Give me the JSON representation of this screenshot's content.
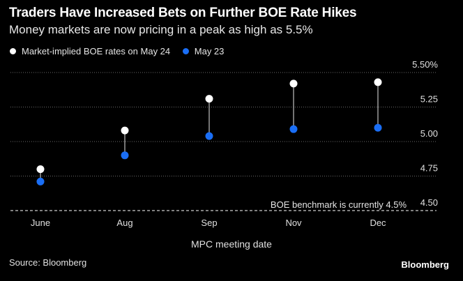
{
  "header": {
    "title": "Traders Have Increased Bets on Further BOE Rate Hikes",
    "subtitle": "Money markets are now pricing in a peak as high as 5.5%"
  },
  "legend": {
    "items": [
      {
        "label": "Market-implied BOE rates on May 24",
        "color": "#ffffff"
      },
      {
        "label": "May 23",
        "color": "#1a6ef5"
      }
    ]
  },
  "footer": {
    "source": "Source: Bloomberg",
    "brand": "Bloomberg"
  },
  "chart_data": {
    "type": "scatter",
    "categories": [
      "June",
      "Aug",
      "Sep",
      "Nov",
      "Dec"
    ],
    "series": [
      {
        "name": "Market-implied BOE rates on May 24",
        "color": "#ffffff",
        "values": [
          4.8,
          5.08,
          5.31,
          5.42,
          5.43
        ]
      },
      {
        "name": "May 23",
        "color": "#1a6ef5",
        "values": [
          4.71,
          4.9,
          5.04,
          5.09,
          5.1
        ]
      }
    ],
    "xlabel": "MPC meeting date",
    "ylabel": "",
    "ylim": [
      4.5,
      5.5
    ],
    "yticks": [
      "4.50",
      "4.75",
      "5.00",
      "5.25",
      "5.50%"
    ],
    "annotations": [
      {
        "text": "BOE benchmark is currently 4.5%",
        "y": 4.5
      }
    ],
    "grid": true
  }
}
